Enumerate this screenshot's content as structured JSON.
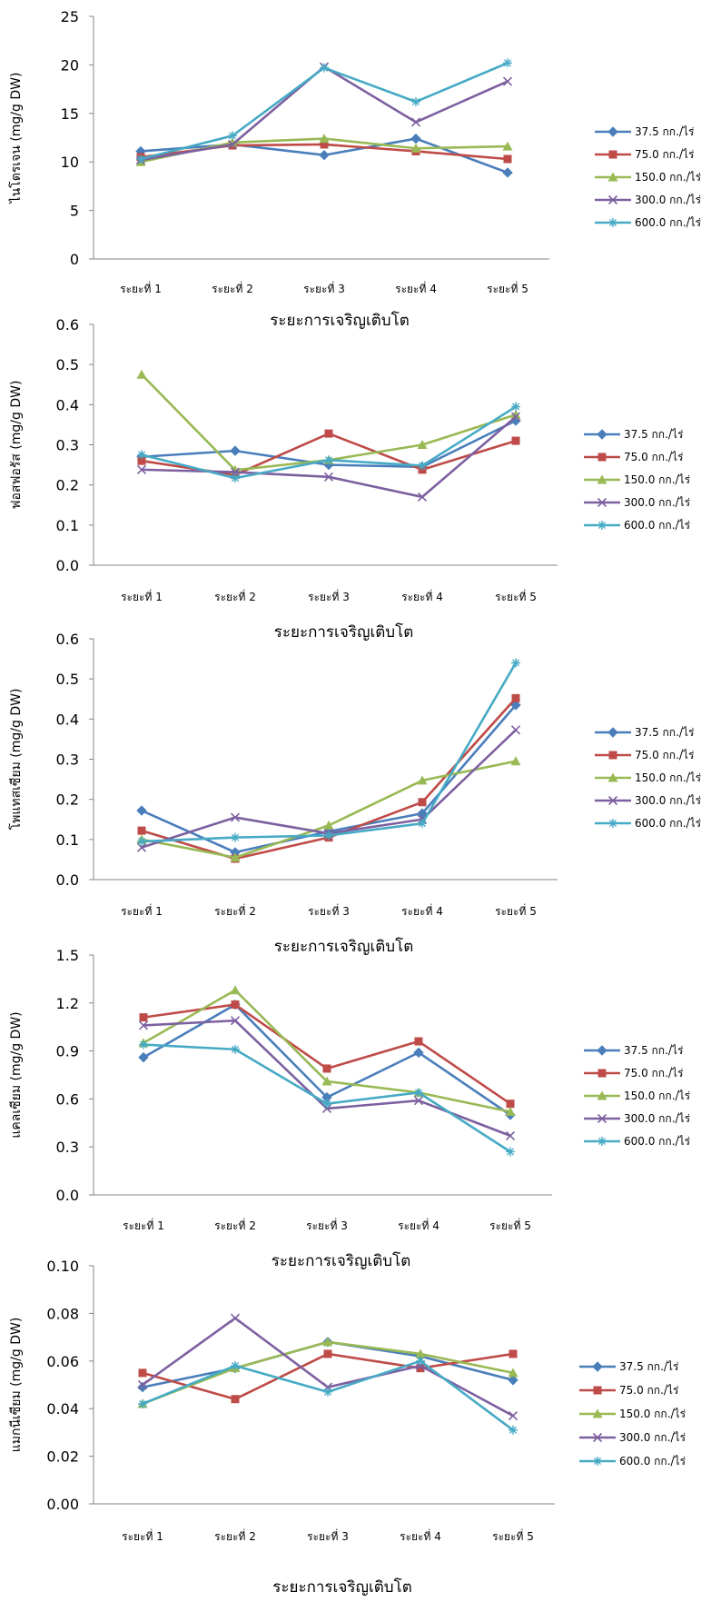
{
  "chart_data": [
    {
      "type": "line",
      "ylabel": "ไนโตรเจน (mg/g DW)",
      "xlabel": "ระยะการเจริญเติบโต",
      "categories": [
        "ระยะที่ 1",
        "ระยะที่ 2",
        "ระยะที่ 3",
        "ระยะที่ 4",
        "ระยะที่ 5"
      ],
      "ylim": [
        0,
        25
      ],
      "yticks": [
        "0",
        "5",
        "10",
        "15",
        "20",
        "25"
      ],
      "legend_position": "right",
      "grid": false,
      "series": [
        {
          "name": "37.5 กก./ไร่",
          "values": [
            11.1,
            11.8,
            10.7,
            12.4,
            8.9
          ]
        },
        {
          "name": "75.0 กก./ไร่",
          "values": [
            10.5,
            11.7,
            11.8,
            11.1,
            10.3
          ]
        },
        {
          "name": "150.0 กก./ไร่",
          "values": [
            10.0,
            12.0,
            12.4,
            11.4,
            11.6
          ]
        },
        {
          "name": "300.0 กก./ไร่",
          "values": [
            10.2,
            11.8,
            19.8,
            14.1,
            18.3
          ]
        },
        {
          "name": "600.0 กก./ไร่",
          "values": [
            10.3,
            12.7,
            19.7,
            16.2,
            20.2
          ]
        }
      ]
    },
    {
      "type": "line",
      "ylabel": "ฟอสฟอรัส (mg/g DW)",
      "xlabel": "ระยะการเจริญเติบโต",
      "categories": [
        "ระยะที่ 1",
        "ระยะที่ 2",
        "ระยะที่ 3",
        "ระยะที่ 4",
        "ระยะที่ 5"
      ],
      "ylim": [
        0,
        0.6
      ],
      "yticks": [
        "0.0",
        "0.1",
        "0.2",
        "0.3",
        "0.4",
        "0.5",
        "0.6"
      ],
      "legend_position": "right",
      "grid": false,
      "series": [
        {
          "name": "37.5 กก./ไร่",
          "values": [
            0.27,
            0.285,
            0.25,
            0.245,
            0.36
          ]
        },
        {
          "name": "75.0 กก./ไร่",
          "values": [
            0.26,
            0.225,
            0.328,
            0.238,
            0.31
          ]
        },
        {
          "name": "150.0 กก./ไร่",
          "values": [
            0.475,
            0.237,
            0.262,
            0.3,
            0.375
          ]
        },
        {
          "name": "300.0 กก./ไร่",
          "values": [
            0.238,
            0.232,
            0.22,
            0.17,
            0.37
          ]
        },
        {
          "name": "600.0 กก./ไร่",
          "values": [
            0.275,
            0.217,
            0.262,
            0.248,
            0.395
          ]
        }
      ]
    },
    {
      "type": "line",
      "ylabel": "โพแทสเซียม (mg/g DW)",
      "xlabel": "ระยะการเจริญเติบโต",
      "categories": [
        "ระยะที่ 1",
        "ระยะที่ 2",
        "ระยะที่ 3",
        "ระยะที่ 4",
        "ระยะที่ 5"
      ],
      "ylim": [
        0,
        0.6
      ],
      "yticks": [
        "0.0",
        "0.1",
        "0.2",
        "0.3",
        "0.4",
        "0.5",
        "0.6"
      ],
      "legend_position": "right",
      "grid": false,
      "series": [
        {
          "name": "37.5 กก./ไร่",
          "values": [
            0.172,
            0.068,
            0.12,
            0.165,
            0.435
          ]
        },
        {
          "name": "75.0 กก./ไร่",
          "values": [
            0.122,
            0.052,
            0.105,
            0.193,
            0.452
          ]
        },
        {
          "name": "150.0 กก./ไร่",
          "values": [
            0.1,
            0.055,
            0.135,
            0.247,
            0.295
          ]
        },
        {
          "name": "300.0 กก./ไร่",
          "values": [
            0.08,
            0.155,
            0.115,
            0.15,
            0.373
          ]
        },
        {
          "name": "600.0 กก./ไร่",
          "values": [
            0.095,
            0.105,
            0.11,
            0.14,
            0.54
          ]
        }
      ]
    },
    {
      "type": "line",
      "ylabel": "แคลเซียม (mg/g DW)",
      "xlabel": "ระยะการเจริญเติบโต",
      "categories": [
        "ระยะที่ 1",
        "ระยะที่ 2",
        "ระยะที่ 3",
        "ระยะที่ 4",
        "ระยะที่ 5"
      ],
      "ylim": [
        0,
        1.5
      ],
      "yticks": [
        "0.0",
        "0.3",
        "0.6",
        "0.9",
        "1.2",
        "1.5"
      ],
      "legend_position": "right",
      "grid": false,
      "series": [
        {
          "name": "37.5 กก./ไร่",
          "values": [
            0.86,
            1.19,
            0.61,
            0.89,
            0.5
          ]
        },
        {
          "name": "75.0 กก./ไร่",
          "values": [
            1.11,
            1.19,
            0.79,
            0.96,
            0.57
          ]
        },
        {
          "name": "150.0 กก./ไร่",
          "values": [
            0.95,
            1.28,
            0.71,
            0.64,
            0.52
          ]
        },
        {
          "name": "300.0 กก./ไร่",
          "values": [
            1.06,
            1.09,
            0.54,
            0.59,
            0.37
          ]
        },
        {
          "name": "600.0 กก./ไร่",
          "values": [
            0.94,
            0.91,
            0.57,
            0.64,
            0.27
          ]
        }
      ]
    },
    {
      "type": "line",
      "ylabel": "แมกนีเซียม (mg/g DW)",
      "xlabel": "ระยะการเจริญเติบโต",
      "categories": [
        "ระยะที่ 1",
        "ระยะที่ 2",
        "ระยะที่ 3",
        "ระยะที่ 4",
        "ระยะที่ 5"
      ],
      "ylim": [
        0,
        0.1
      ],
      "yticks": [
        "0.00",
        "0.02",
        "0.04",
        "0.06",
        "0.08",
        "0.10"
      ],
      "legend_position": "right",
      "grid": false,
      "series": [
        {
          "name": "37.5 กก./ไร่",
          "values": [
            0.049,
            0.057,
            0.068,
            0.062,
            0.052
          ]
        },
        {
          "name": "75.0 กก./ไร่",
          "values": [
            0.055,
            0.044,
            0.063,
            0.057,
            0.063
          ]
        },
        {
          "name": "150.0 กก./ไร่",
          "values": [
            0.042,
            0.057,
            0.068,
            0.063,
            0.055
          ]
        },
        {
          "name": "300.0 กก./ไร่",
          "values": [
            0.05,
            0.078,
            0.049,
            0.058,
            0.037
          ]
        },
        {
          "name": "600.0 กก./ไร่",
          "values": [
            0.042,
            0.058,
            0.047,
            0.06,
            0.031
          ]
        }
      ]
    }
  ],
  "series_colors": [
    "#4a7ebb",
    "#be4b48",
    "#98b954",
    "#7d60a0",
    "#46aac5"
  ],
  "series_markers": [
    "diamond",
    "square",
    "triangle",
    "x",
    "star"
  ]
}
